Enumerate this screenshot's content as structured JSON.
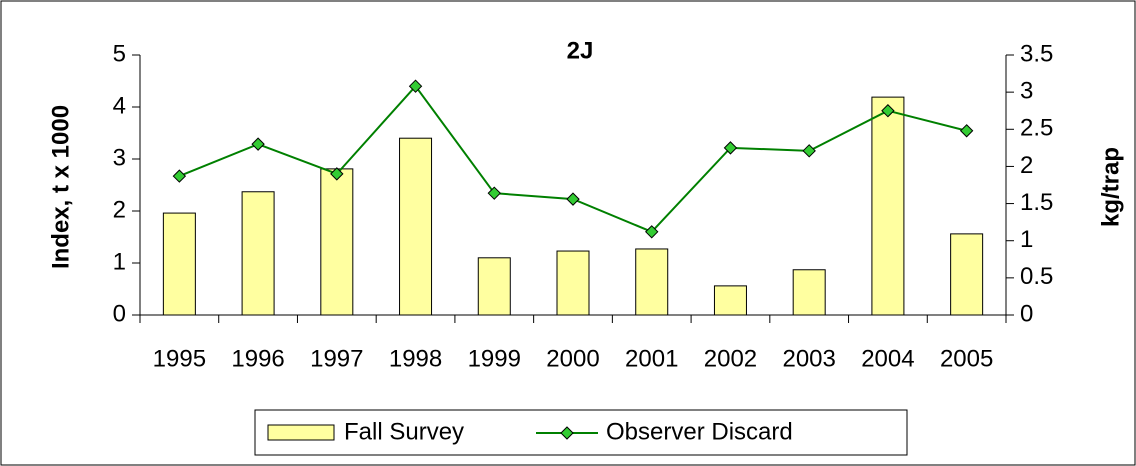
{
  "chart_data": {
    "type": "bar-line",
    "title": "2J",
    "y_label": "Index, t x 1000",
    "y2_label": "kg/trap",
    "categories": [
      "1995",
      "1996",
      "1997",
      "1998",
      "1999",
      "2000",
      "2001",
      "2002",
      "2003",
      "2004",
      "2005"
    ],
    "series": [
      {
        "name": "Fall Survey",
        "type": "bar",
        "color": "#ffffa0",
        "values": [
          1.96,
          2.37,
          2.81,
          3.4,
          1.1,
          1.23,
          1.27,
          0.56,
          0.87,
          4.19,
          1.56
        ]
      },
      {
        "name": "Observer Discard",
        "type": "line",
        "axis": "y2",
        "color": "#008000",
        "marker_color": "#33cc33",
        "values": [
          1.87,
          2.3,
          1.9,
          3.08,
          1.64,
          1.56,
          1.12,
          2.25,
          2.21,
          2.75,
          2.48
        ]
      }
    ],
    "ylim": [
      0,
      5
    ],
    "yticks": [
      0,
      1,
      2,
      3,
      4,
      5
    ],
    "y2lim": [
      0,
      3.5
    ],
    "y2ticks": [
      0,
      0.5,
      1,
      1.5,
      2,
      2.5,
      3,
      3.5
    ]
  }
}
